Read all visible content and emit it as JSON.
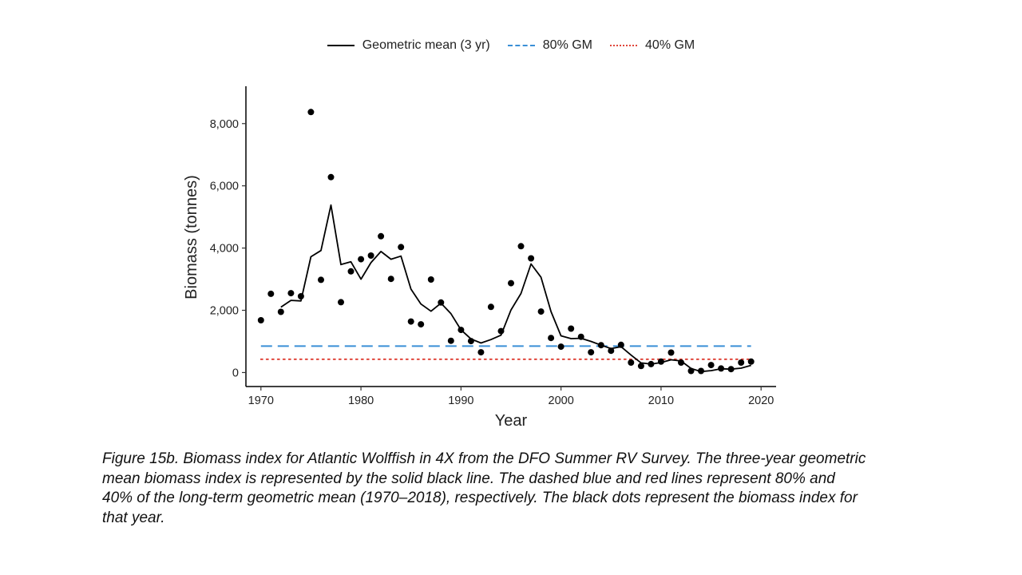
{
  "chart_data": {
    "type": "line",
    "xlabel": "Year",
    "ylabel": "Biomass (tonnes)",
    "xlim": [
      1968.5,
      2021.5
    ],
    "ylim": [
      -450,
      9200
    ],
    "x_ticks": [
      1970,
      1980,
      1990,
      2000,
      2010,
      2020
    ],
    "y_ticks": [
      0,
      2000,
      4000,
      6000,
      8000
    ],
    "x_tick_labels": [
      "1970",
      "1980",
      "1990",
      "2000",
      "2010",
      "2020"
    ],
    "y_tick_labels": [
      "0",
      "2,000",
      "4,000",
      "6,000",
      "8,000"
    ],
    "legend_position": "top",
    "grid": false,
    "series": [
      {
        "name": "Geometric mean (3 yr)",
        "style": "solid",
        "color": "#000000",
        "x": [
          1972,
          1973,
          1974,
          1975,
          1976,
          1977,
          1978,
          1979,
          1980,
          1981,
          1982,
          1983,
          1984,
          1985,
          1986,
          1987,
          1988,
          1989,
          1990,
          1991,
          1992,
          1993,
          1994,
          1995,
          1996,
          1997,
          1998,
          1999,
          2000,
          2001,
          2002,
          2003,
          2004,
          2005,
          2006,
          2007,
          2008,
          2009,
          2010,
          2011,
          2012,
          2013,
          2014,
          2015,
          2016,
          2017,
          2018,
          2019
        ],
        "values": [
          2100,
          2320,
          2300,
          3720,
          3920,
          5380,
          3470,
          3560,
          3000,
          3530,
          3890,
          3640,
          3740,
          2680,
          2200,
          1970,
          2230,
          1890,
          1370,
          1080,
          950,
          1060,
          1200,
          2010,
          2540,
          3490,
          3060,
          1960,
          1180,
          1090,
          1100,
          1000,
          880,
          770,
          830,
          560,
          310,
          270,
          320,
          410,
          370,
          130,
          30,
          60,
          120,
          110,
          140,
          230
        ]
      },
      {
        "name": "Biomass index (annual)",
        "style": "points",
        "color": "#000000",
        "x": [
          1970,
          1971,
          1972,
          1973,
          1974,
          1975,
          1976,
          1977,
          1978,
          1979,
          1980,
          1981,
          1982,
          1983,
          1984,
          1985,
          1986,
          1987,
          1988,
          1989,
          1990,
          1991,
          1992,
          1993,
          1994,
          1995,
          1996,
          1997,
          1998,
          1999,
          2000,
          2001,
          2002,
          2003,
          2004,
          2005,
          2006,
          2007,
          2008,
          2009,
          2010,
          2011,
          2012,
          2013,
          2014,
          2015,
          2016,
          2017,
          2018,
          2019
        ],
        "values": [
          1680,
          2530,
          1950,
          2550,
          2450,
          8370,
          2980,
          6280,
          2260,
          3250,
          3640,
          3760,
          4380,
          3010,
          4030,
          1640,
          1550,
          2990,
          2250,
          1020,
          1370,
          1010,
          650,
          2110,
          1330,
          2870,
          4060,
          3670,
          1960,
          1110,
          830,
          1410,
          1150,
          650,
          880,
          700,
          890,
          320,
          210,
          270,
          350,
          640,
          320,
          50,
          50,
          240,
          130,
          110,
          320,
          350
        ]
      },
      {
        "name": "80% GM",
        "style": "dashed",
        "color": "#3A8FD6",
        "x": [
          1970,
          2019
        ],
        "values": [
          850,
          850
        ]
      },
      {
        "name": "40% GM",
        "style": "dotted",
        "color": "#E0453A",
        "x": [
          1970,
          2019
        ],
        "values": [
          425,
          425
        ]
      }
    ]
  },
  "legend": {
    "items": [
      {
        "label": "Geometric mean (3 yr)",
        "color": "#000000",
        "style": "solid"
      },
      {
        "label": "80% GM",
        "color": "#3A8FD6",
        "style": "dashed"
      },
      {
        "label": "40% GM",
        "color": "#E0453A",
        "style": "dotted"
      }
    ]
  },
  "caption": {
    "text": "Figure 15b. Biomass index for Atlantic Wolffish in 4X from the DFO Summer RV Survey. The three-year geometric mean biomass index is represented by the solid black line. The dashed blue and red lines represent 80% and 40% of the long-term geometric mean (1970–2018), respectively. The black dots represent the biomass index for that year."
  }
}
